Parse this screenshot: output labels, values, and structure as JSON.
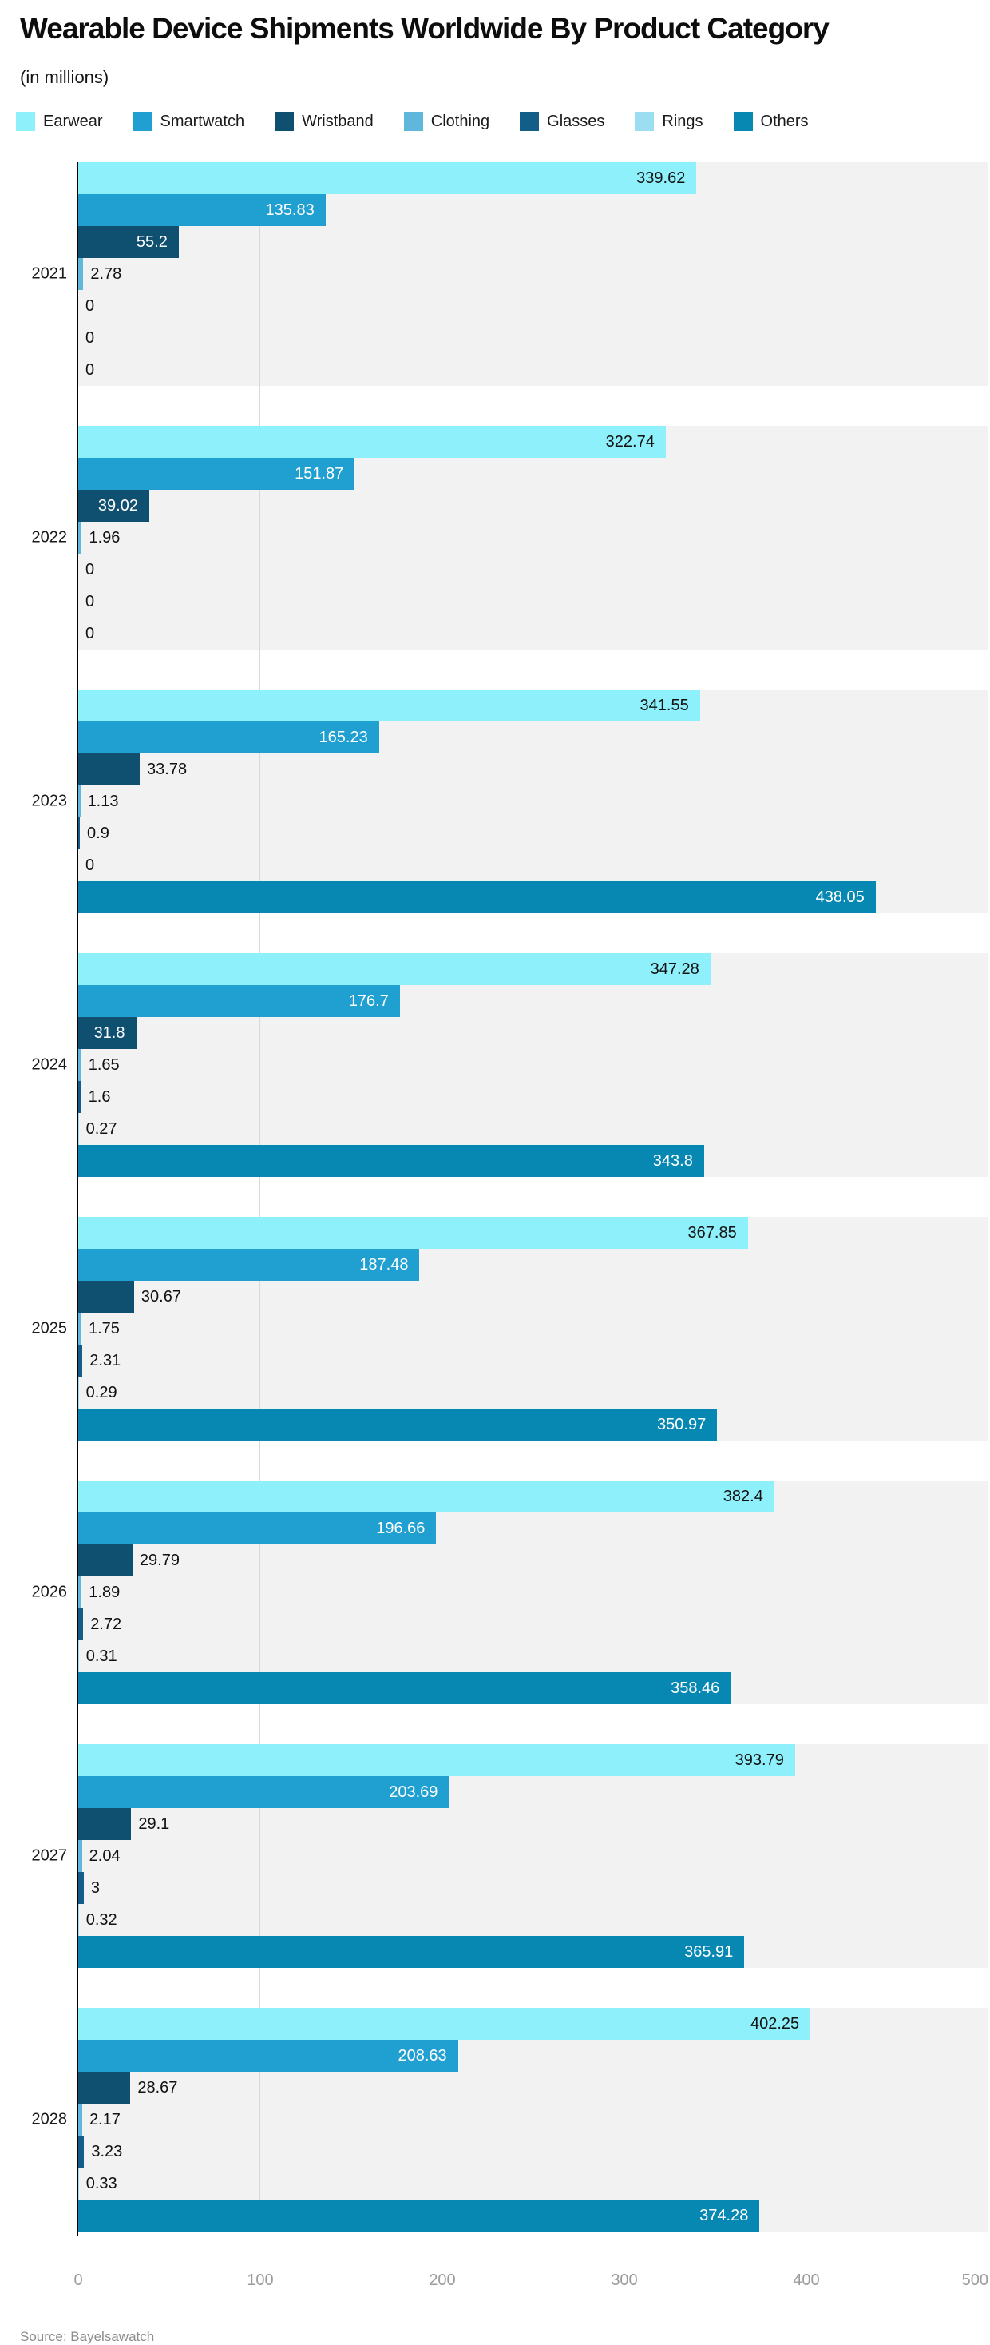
{
  "header": {
    "title": "Wearable Device Shipments Worldwide By Product Category",
    "subtitle": "(in millions)"
  },
  "footer": {
    "source": "Source: Bayelsawatch"
  },
  "colors": {
    "band_background": "#f2f2f2",
    "gridline": "#d9d9d9",
    "axis_line": "#000000",
    "tick_label": "#9b9b9b",
    "dark_label": "#111111",
    "white_label": "#ffffff"
  },
  "chart_data": {
    "type": "bar",
    "orientation": "horizontal",
    "title": "Wearable Device Shipments Worldwide By Product Category",
    "subtitle": "(in millions)",
    "grid": true,
    "legend_position": "top",
    "xlim": [
      0,
      500
    ],
    "x_ticks": [
      0,
      100,
      200,
      300,
      400,
      500
    ],
    "categories": [
      "2021",
      "2022",
      "2023",
      "2024",
      "2025",
      "2026",
      "2027",
      "2028"
    ],
    "series": [
      {
        "name": "Earwear",
        "color": "#8df0fa",
        "pattern": "solid",
        "label_color_inside": "#111111",
        "label_inside": [
          true,
          true,
          true,
          true,
          true,
          true,
          true,
          true
        ],
        "values": [
          339.62,
          322.74,
          341.55,
          347.28,
          367.85,
          382.4,
          393.79,
          402.25
        ]
      },
      {
        "name": "Smartwatch",
        "color": "#209fd1",
        "pattern": "solid",
        "label_color_inside": "#ffffff",
        "label_inside": [
          true,
          true,
          true,
          true,
          true,
          true,
          true,
          true
        ],
        "values": [
          135.83,
          151.87,
          165.23,
          176.7,
          187.48,
          196.66,
          203.69,
          208.63
        ]
      },
      {
        "name": "Wristband",
        "color": "#0f4f70",
        "pattern": "solid",
        "label_color_inside": "#ffffff",
        "label_inside": [
          true,
          true,
          false,
          true,
          false,
          false,
          false,
          false
        ],
        "values": [
          55.2,
          39.02,
          33.78,
          31.8,
          30.67,
          29.79,
          29.1,
          28.67
        ]
      },
      {
        "name": "Clothing",
        "color": "#5fb8dc",
        "pattern": "dots",
        "label_color_inside": "#111111",
        "label_inside": [
          false,
          false,
          false,
          false,
          false,
          false,
          false,
          false
        ],
        "values": [
          2.78,
          1.96,
          1.13,
          1.65,
          1.75,
          1.89,
          2.04,
          2.17
        ]
      },
      {
        "name": "Glasses",
        "color": "#135e88",
        "pattern": "solid",
        "label_color_inside": "#ffffff",
        "label_inside": [
          false,
          false,
          false,
          false,
          false,
          false,
          false,
          false
        ],
        "values": [
          0,
          0,
          0.9,
          1.6,
          2.31,
          2.72,
          3,
          3.23
        ]
      },
      {
        "name": "Rings",
        "color": "#9bddf1",
        "pattern": "dots",
        "label_color_inside": "#111111",
        "label_inside": [
          false,
          false,
          false,
          false,
          false,
          false,
          false,
          false
        ],
        "values": [
          0,
          0,
          0,
          0.27,
          0.29,
          0.31,
          0.32,
          0.33
        ]
      },
      {
        "name": "Others",
        "color": "#0788b3",
        "pattern": "solid",
        "label_color_inside": "#ffffff",
        "label_inside": [
          false,
          false,
          true,
          true,
          true,
          true,
          true,
          true
        ],
        "values": [
          0,
          0,
          438.05,
          343.8,
          350.97,
          358.46,
          365.91,
          374.28
        ]
      }
    ]
  }
}
